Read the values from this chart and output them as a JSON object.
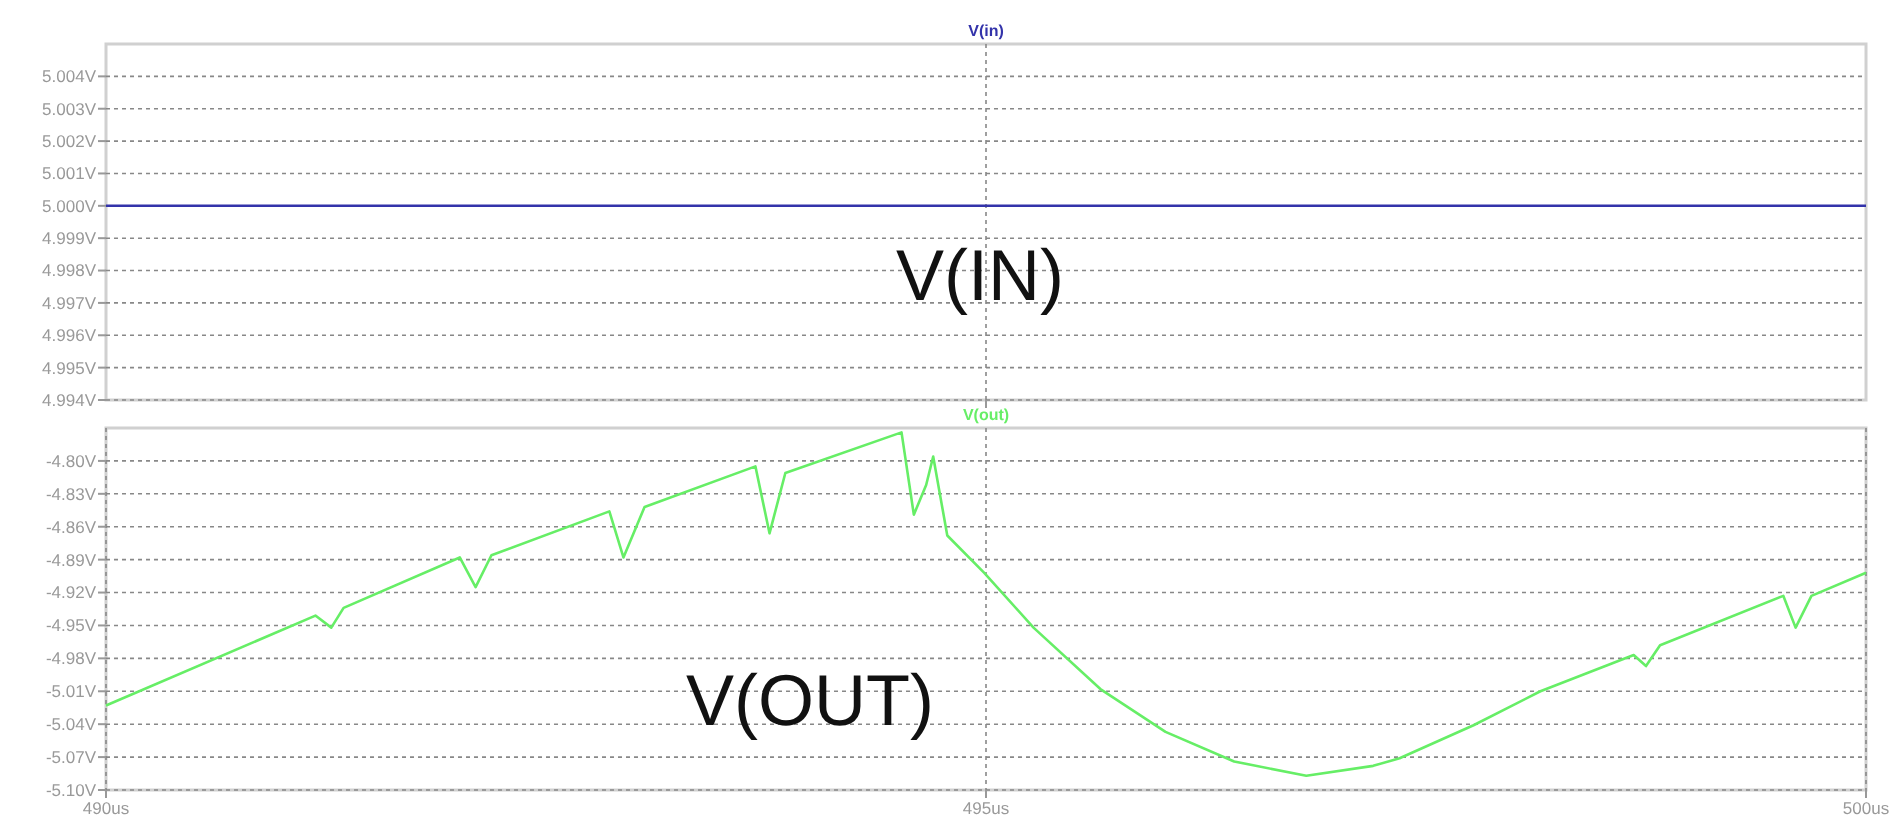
{
  "chart_data": [
    {
      "type": "line",
      "xlim": [
        490,
        500
      ],
      "xticks": [
        {
          "value": 495,
          "label": null
        }
      ],
      "ylim": [
        4.994,
        5.005
      ],
      "tick_labels": "y",
      "grid": true,
      "legend": "top",
      "line_style": "solid",
      "yticks": [
        {
          "value": 4.994,
          "label": "4.994V"
        },
        {
          "value": 4.995,
          "label": "4.995V"
        },
        {
          "value": 4.996,
          "label": "4.996V"
        },
        {
          "value": 4.997,
          "label": "4.997V"
        },
        {
          "value": 4.998,
          "label": "4.998V"
        },
        {
          "value": 4.999,
          "label": "4.999V"
        },
        {
          "value": 5.0,
          "label": "5.000V"
        },
        {
          "value": 5.001,
          "label": "5.001V"
        },
        {
          "value": 5.002,
          "label": "5.002V"
        },
        {
          "value": 5.003,
          "label": "5.003V"
        },
        {
          "value": 5.004,
          "label": "5.004V"
        }
      ],
      "series": [
        {
          "name": "V(in)",
          "color": "#3333aa",
          "x": [
            490,
            500
          ],
          "values": [
            5.0,
            5.0
          ]
        }
      ],
      "annotations": [
        "V(IN)"
      ]
    },
    {
      "type": "line",
      "xlim": [
        490,
        500
      ],
      "ylim": [
        -5.1,
        -4.77
      ],
      "grid": true,
      "legend": "top",
      "line_style": "solid",
      "xticks": [
        {
          "value": 490,
          "label": "490us"
        },
        {
          "value": 495,
          "label": "495us"
        },
        {
          "value": 500,
          "label": "500us"
        }
      ],
      "yticks": [
        {
          "value": -5.1,
          "label": "-5.10V"
        },
        {
          "value": -5.07,
          "label": "-5.07V"
        },
        {
          "value": -5.04,
          "label": "-5.04V"
        },
        {
          "value": -5.01,
          "label": "-5.01V"
        },
        {
          "value": -4.98,
          "label": "-4.98V"
        },
        {
          "value": -4.95,
          "label": "-4.95V"
        },
        {
          "value": -4.92,
          "label": "-4.92V"
        },
        {
          "value": -4.89,
          "label": "-4.89V"
        },
        {
          "value": -4.86,
          "label": "-4.86V"
        },
        {
          "value": -4.83,
          "label": "-4.83V"
        },
        {
          "value": -4.8,
          "label": "-4.80V"
        }
      ],
      "series": [
        {
          "name": "V(out)",
          "color": "#66ee66",
          "x": [
            490,
            491.19,
            491.28,
            491.35,
            492.01,
            492.1,
            492.19,
            492.86,
            492.94,
            493.06,
            493.69,
            493.77,
            493.86,
            494.52,
            494.59,
            494.66,
            494.7,
            494.78,
            494.99,
            495.27,
            495.65,
            496.02,
            496.41,
            496.82,
            497.2,
            497.35,
            497.77,
            498.15,
            498.68,
            498.75,
            498.83,
            499.53,
            499.6,
            499.69,
            500
          ],
          "values": [
            -5.023,
            -4.941,
            -4.952,
            -4.934,
            -4.888,
            -4.915,
            -4.886,
            -4.846,
            -4.888,
            -4.842,
            -4.805,
            -4.866,
            -4.811,
            -4.774,
            -4.849,
            -4.822,
            -4.796,
            -4.868,
            -4.902,
            -4.952,
            -5.008,
            -5.047,
            -5.074,
            -5.087,
            -5.078,
            -5.071,
            -5.041,
            -5.01,
            -4.977,
            -4.987,
            -4.968,
            -4.923,
            -4.952,
            -4.923,
            -4.902
          ]
        }
      ],
      "annotations": [
        "V(OUT)"
      ]
    }
  ]
}
